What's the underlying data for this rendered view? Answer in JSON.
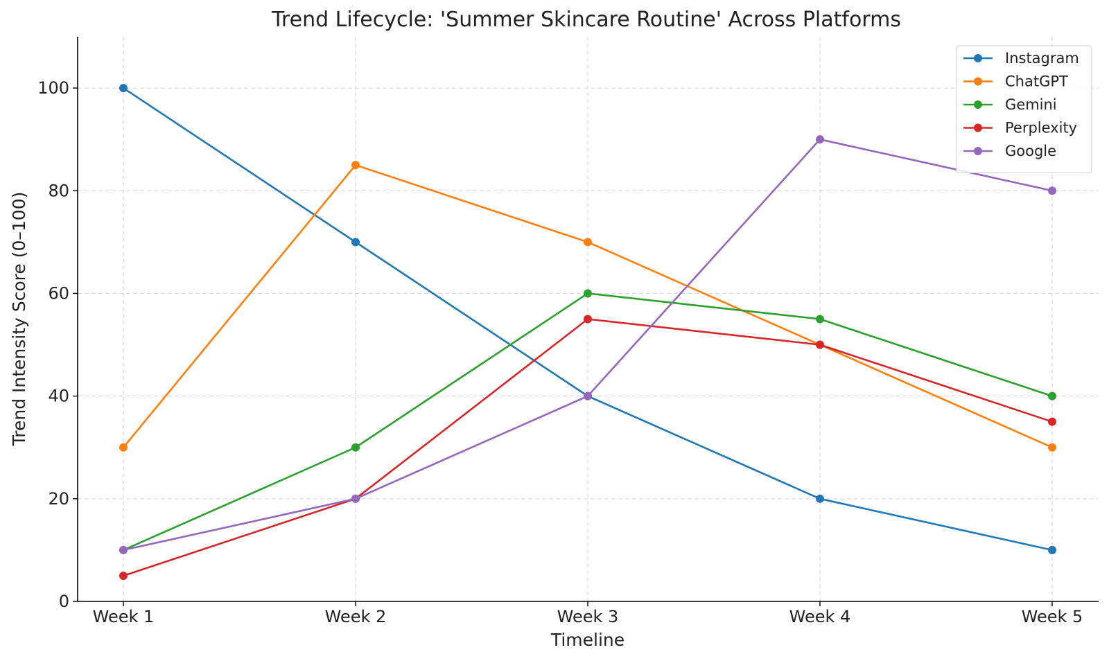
{
  "chart_data": {
    "type": "line",
    "title": "Trend Lifecycle: 'Summer Skincare Routine' Across Platforms",
    "xlabel": "Timeline",
    "ylabel": "Trend Intensity Score (0–100)",
    "categories": [
      "Week 1",
      "Week 2",
      "Week 3",
      "Week 4",
      "Week 5"
    ],
    "ylim": [
      0,
      110
    ],
    "yticks": [
      0,
      20,
      40,
      60,
      80,
      100
    ],
    "grid": true,
    "legend_position": "top-right",
    "series": [
      {
        "name": "Instagram",
        "color": "#1f77b4",
        "values": [
          100,
          70,
          40,
          20,
          10
        ]
      },
      {
        "name": "ChatGPT",
        "color": "#ff7f0e",
        "values": [
          30,
          85,
          70,
          50,
          30
        ]
      },
      {
        "name": "Gemini",
        "color": "#2ca02c",
        "values": [
          10,
          30,
          60,
          55,
          40
        ]
      },
      {
        "name": "Perplexity",
        "color": "#d62728",
        "values": [
          5,
          20,
          55,
          50,
          35
        ]
      },
      {
        "name": "Google",
        "color": "#9467bd",
        "values": [
          10,
          20,
          40,
          90,
          80
        ]
      }
    ]
  }
}
